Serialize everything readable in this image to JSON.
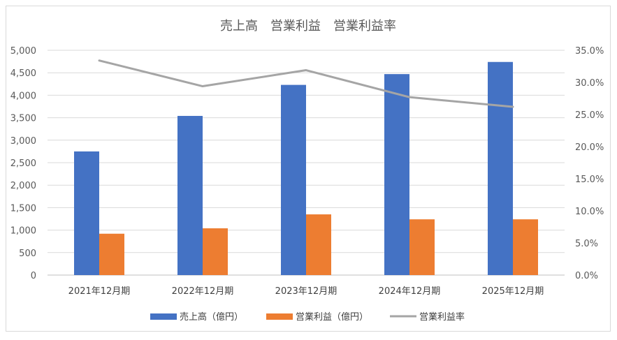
{
  "chart_data": {
    "type": "bar",
    "title": "売上高　営業利益　営業利益率",
    "categories": [
      "2021年12月期",
      "2022年12月期",
      "2023年12月期",
      "2024年12月期",
      "2025年12月期"
    ],
    "series": [
      {
        "name": "売上高（億円）",
        "type": "bar",
        "axis": "left",
        "color": "#4472c4",
        "values": [
          2750,
          3540,
          4230,
          4470,
          4740
        ]
      },
      {
        "name": "営業利益（億円）",
        "type": "bar",
        "axis": "left",
        "color": "#ed7d31",
        "values": [
          920,
          1040,
          1350,
          1240,
          1240
        ]
      },
      {
        "name": "営業利益率",
        "type": "line",
        "axis": "right",
        "color": "#a5a5a5",
        "values": [
          0.334,
          0.294,
          0.319,
          0.277,
          0.262
        ]
      }
    ],
    "y_left": {
      "ylim": [
        0,
        5000
      ],
      "ticks": [
        0,
        500,
        1000,
        1500,
        2000,
        2500,
        3000,
        3500,
        4000,
        4500,
        5000
      ],
      "tick_labels": [
        "0",
        "500",
        "1,000",
        "1,500",
        "2,000",
        "2,500",
        "3,000",
        "3,500",
        "4,000",
        "4,500",
        "5,000"
      ]
    },
    "y_right": {
      "ylim": [
        0,
        0.35
      ],
      "ticks": [
        0,
        0.05,
        0.1,
        0.15,
        0.2,
        0.25,
        0.3,
        0.35
      ],
      "tick_labels": [
        "0.0%",
        "5.0%",
        "10.0%",
        "15.0%",
        "20.0%",
        "25.0%",
        "30.0%",
        "35.0%"
      ]
    },
    "grid": true,
    "legend_position": "bottom"
  }
}
